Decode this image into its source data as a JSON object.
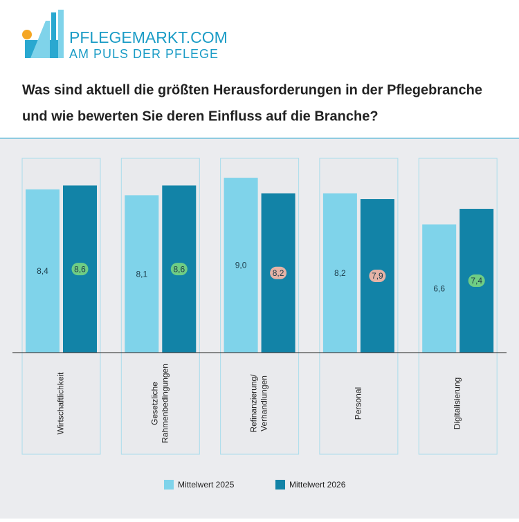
{
  "header": {
    "brand": "PFLEGEMARKT.COM",
    "tagline": "AM PULS DER PFLEGE",
    "title": [
      "Was sind aktuell die größten Herausforderungen in der Pflegebranche",
      "und wie bewerten Sie deren Einfluss auf die Branche?"
    ]
  },
  "chart_data": {
    "type": "bar",
    "categories": [
      "Wirtschaftlichkeit",
      "Gesetzliche\nRahmenbedingungen",
      "Refinanzierung/\nVerhandlungen",
      "Personal",
      "Digitalisierung"
    ],
    "series": [
      {
        "name": "Mittelwert 2025",
        "color": "#7fd3ea",
        "values": [
          8.4,
          8.1,
          9.0,
          8.2,
          6.6
        ],
        "value_labels": [
          "8,4",
          "8,1",
          "9,0",
          "8,2",
          "6,6"
        ]
      },
      {
        "name": "Mittelwert 2026",
        "color": "#1283a7",
        "values": [
          8.6,
          8.6,
          8.2,
          7.9,
          7.4
        ],
        "value_labels": [
          "8,6",
          "8,6",
          "8,2",
          "7,9",
          "7,4"
        ]
      }
    ],
    "ylim": [
      0,
      10
    ],
    "legend": "bottom"
  }
}
